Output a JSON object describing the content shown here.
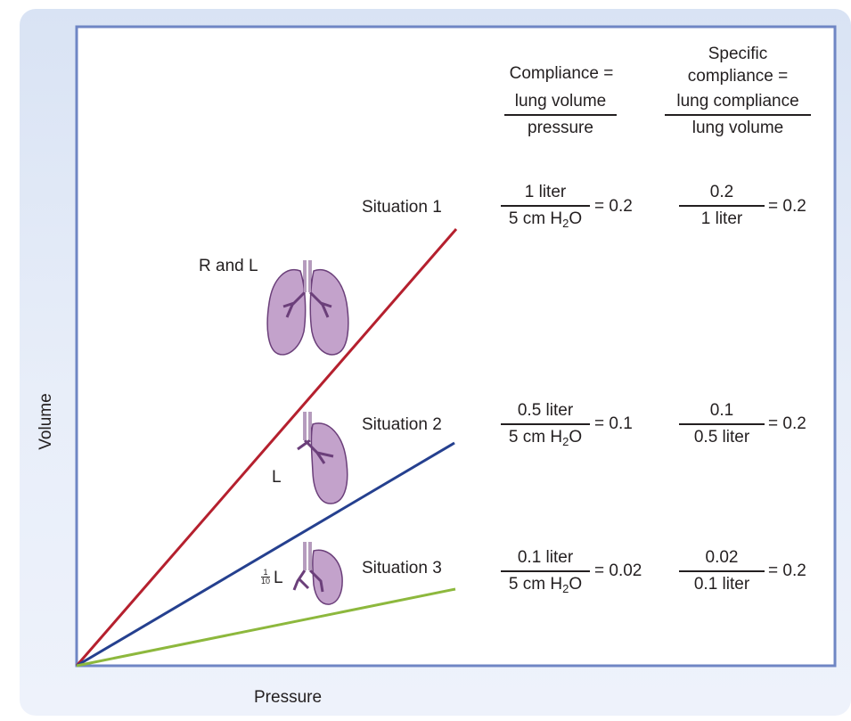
{
  "header": {
    "compliance_word": "Compliance =",
    "compliance_num": "lung volume",
    "compliance_den": "pressure",
    "specific_line1": "Specific",
    "specific_line2": "compliance =",
    "specific_num": "lung compliance",
    "specific_den": "lung volume"
  },
  "axes": {
    "ylabel": "Volume",
    "xlabel": "Pressure"
  },
  "lung_labels": {
    "both": "R and L",
    "one": "L",
    "tenth_num": "1",
    "tenth_den": "10",
    "tenth_suffix": "L"
  },
  "den_prefix": "5 cm H",
  "den_sub": "2",
  "den_suffix": "O",
  "situations": [
    {
      "label": "Situation 1",
      "volume": "1 liter",
      "compliance": "= 0.2",
      "spec_num": "0.2",
      "spec_den": "1 liter",
      "specific": "= 0.2",
      "color": "#b5202e"
    },
    {
      "label": "Situation 2",
      "volume": "0.5 liter",
      "compliance": "= 0.1",
      "spec_num": "0.1",
      "spec_den": "0.5 liter",
      "specific": "= 0.2",
      "color": "#25408f"
    },
    {
      "label": "Situation 3",
      "volume": "0.1 liter",
      "compliance": "= 0.02",
      "spec_num": "0.02",
      "spec_den": "0.1 liter",
      "specific": "= 0.2",
      "color": "#8db83d"
    }
  ],
  "colors": {
    "frame": "#6f86c4",
    "lung_fill": "#c3a2cb",
    "lung_stroke": "#6b3f7a"
  }
}
